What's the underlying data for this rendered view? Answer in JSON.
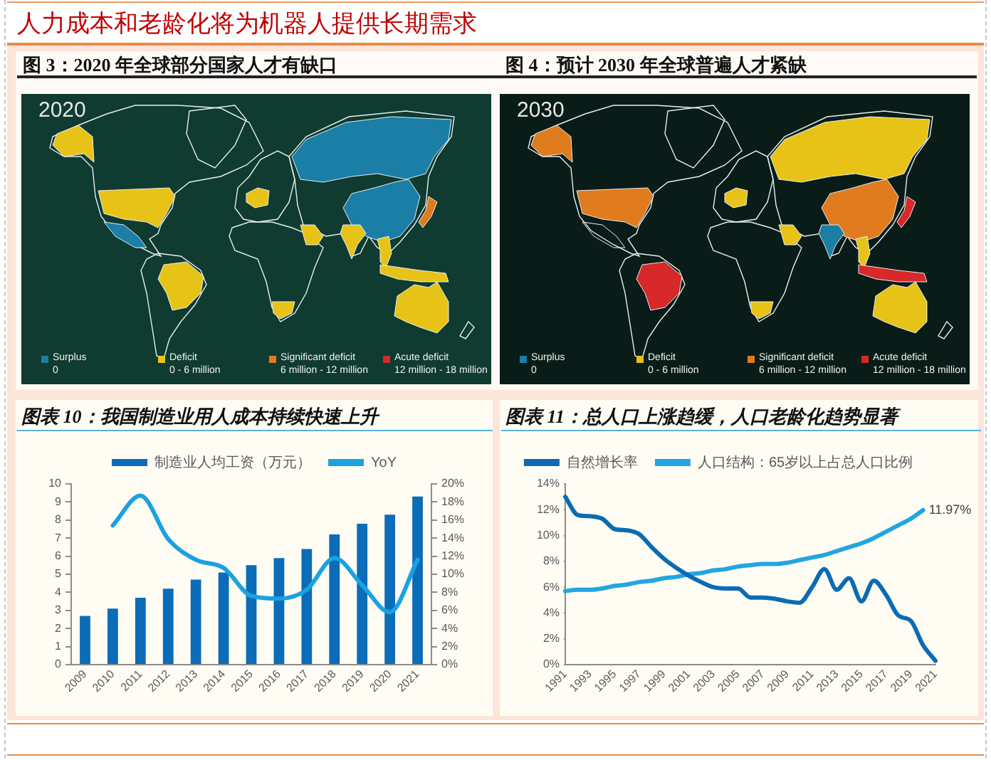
{
  "chart_data": [
    {
      "type": "other",
      "title": "人力成本和老龄化将为机器人提供长期需求"
    },
    {
      "type": "other",
      "title": "图 3：2020 年全球部分国家人才有缺口",
      "categories": [
        "Surplus",
        "Deficit",
        "Significant deficit",
        "Acute deficit"
      ],
      "colors": [
        "#1a7ea6",
        "#e8c317",
        "#e07b1e",
        "#d7282a"
      ],
      "annotations": [
        "2020",
        "0",
        "0 - 6 million",
        "6 million - 12 million",
        "12 million - 18 million"
      ]
    },
    {
      "type": "other",
      "title": "图 4：预计 2030 年全球普遍人才紧缺",
      "categories": [
        "Surplus",
        "Deficit",
        "Significant deficit",
        "Acute deficit"
      ],
      "colors": [
        "#1a7ea6",
        "#e8c317",
        "#e07b1e",
        "#d7282a"
      ],
      "annotations": [
        "2030",
        "0",
        "0 - 6 million",
        "6 million - 12 million",
        "12 million - 18 million"
      ]
    },
    {
      "type": "bar",
      "title": "图表 10：我国制造业用人成本持续快速上升",
      "categories": [
        "2009",
        "2010",
        "2011",
        "2012",
        "2013",
        "2014",
        "2015",
        "2016",
        "2017",
        "2018",
        "2019",
        "2020",
        "2021"
      ],
      "series": [
        {
          "name": "制造业人均工资（万元）",
          "color": "#0b6cb8",
          "values": [
            2.7,
            3.1,
            3.7,
            4.2,
            4.7,
            5.1,
            5.5,
            5.9,
            6.4,
            7.2,
            7.8,
            8.3,
            9.3
          ]
        },
        {
          "name": "YoY",
          "type": "line",
          "axis": "y2",
          "color": "#1ba1e2",
          "values": [
            null,
            15.4,
            18.7,
            13.9,
            11.6,
            10.7,
            7.6,
            7.3,
            8.3,
            11.8,
            8.8,
            5.8,
            11.6
          ]
        }
      ],
      "ylim": [
        0,
        10
      ],
      "yticks": [
        0,
        1,
        2,
        3,
        4,
        5,
        6,
        7,
        8,
        9,
        10
      ],
      "y2lim": [
        0,
        20
      ],
      "y2ticks": [
        {
          "value": 0,
          "label": "0%"
        },
        {
          "value": 2,
          "label": "2%"
        },
        {
          "value": 4,
          "label": "4%"
        },
        {
          "value": 6,
          "label": "6%"
        },
        {
          "value": 8,
          "label": "8%"
        },
        {
          "value": 10,
          "label": "10%"
        },
        {
          "value": 12,
          "label": "12%"
        },
        {
          "value": 14,
          "label": "14%"
        },
        {
          "value": 16,
          "label": "16%"
        },
        {
          "value": 18,
          "label": "18%"
        },
        {
          "value": 20,
          "label": "20%"
        }
      ],
      "legend": "top"
    },
    {
      "type": "line",
      "title": "图表 11：总人口上涨趋缓，人口老龄化趋势显著",
      "categories": [
        "1991",
        null,
        "1993",
        null,
        "1995",
        null,
        "1997",
        null,
        "1999",
        null,
        "2001",
        null,
        "2003",
        null,
        "2005",
        null,
        "2007",
        null,
        "2009",
        null,
        "2011",
        null,
        "2013",
        null,
        "2015",
        null,
        "2017",
        null,
        "2019",
        null,
        "2021"
      ],
      "series": [
        {
          "name": "自然增长率",
          "color": "#0c6bb4",
          "values": [
            13.0,
            11.6,
            11.5,
            11.3,
            10.5,
            10.4,
            10.1,
            9.1,
            8.2,
            7.5,
            6.9,
            6.4,
            6.0,
            5.9,
            5.9,
            5.2,
            5.2,
            5.1,
            4.9,
            4.8,
            6.0,
            7.4,
            5.8,
            6.7,
            4.9,
            6.5,
            5.4,
            3.8,
            3.4,
            1.5,
            0.3
          ]
        },
        {
          "name": "人口结构：65岁以上占总人口比例",
          "color": "#22a5e3",
          "values": [
            5.7,
            5.8,
            5.8,
            5.9,
            6.1,
            6.2,
            6.4,
            6.5,
            6.7,
            6.8,
            7.0,
            7.1,
            7.3,
            7.4,
            7.6,
            7.7,
            7.8,
            7.8,
            7.9,
            8.1,
            8.3,
            8.5,
            8.8,
            9.1,
            9.4,
            9.8,
            10.3,
            10.8,
            11.3,
            11.97,
            null
          ],
          "value_labels": [
            null,
            null,
            null,
            null,
            null,
            null,
            null,
            null,
            null,
            null,
            null,
            null,
            null,
            null,
            null,
            null,
            null,
            null,
            null,
            null,
            null,
            null,
            null,
            null,
            null,
            null,
            null,
            null,
            null,
            "11.97%",
            null
          ]
        }
      ],
      "ylim": [
        0,
        14
      ],
      "yticks": [
        {
          "value": 0,
          "label": "0%"
        },
        {
          "value": 2,
          "label": "2%"
        },
        {
          "value": 4,
          "label": "4%"
        },
        {
          "value": 6,
          "label": "6%"
        },
        {
          "value": 8,
          "label": "8%"
        },
        {
          "value": 10,
          "label": "10%"
        },
        {
          "value": 12,
          "label": "12%"
        },
        {
          "value": 14,
          "label": "14%"
        }
      ],
      "legend": "top"
    }
  ]
}
